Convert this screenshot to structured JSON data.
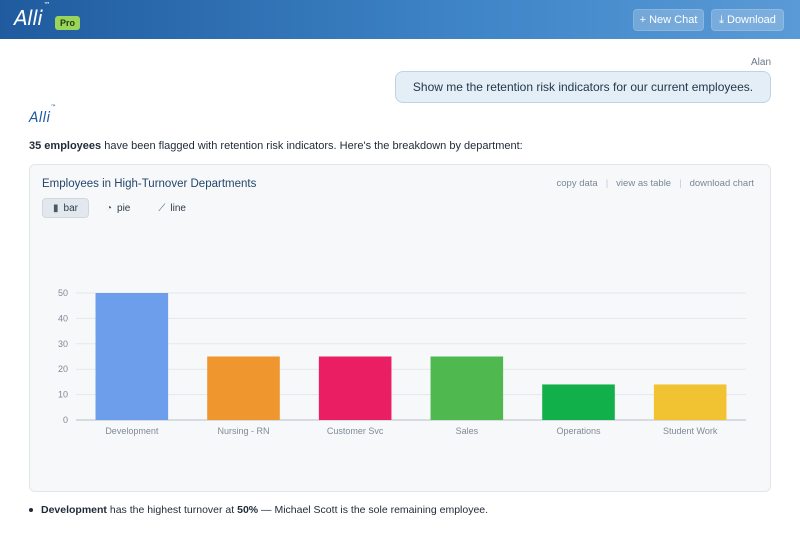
{
  "header": {
    "logo_text": "Alli",
    "logo_tm": "™",
    "badge": "Pro",
    "new_chat": "+ New Chat",
    "download": "⤓ Download"
  },
  "conversation": {
    "user_name": "Alan",
    "user_message": "Show me the retention risk indicators for our current employees.",
    "assistant_name": "Alli",
    "assistant_tm": "™",
    "summary_count": "35 employees",
    "summary_rest": " have been flagged with retention risk indicators. Here's the breakdown by department:"
  },
  "chart_card": {
    "title": "Employees in High-Turnover Departments",
    "actions": [
      "copy data",
      "view as table",
      "download chart"
    ],
    "tabs": [
      {
        "label": "bar",
        "icon": "bar-chart-icon",
        "glyph": "▮"
      },
      {
        "label": "pie",
        "icon": "pie-chart-icon",
        "glyph": "◔"
      },
      {
        "label": "line",
        "icon": "line-chart-icon",
        "glyph": "⟋"
      }
    ],
    "active_tab": "bar"
  },
  "chart_data": {
    "type": "bar",
    "title": "Employees in High-Turnover Departments",
    "categories": [
      "Development",
      "Nursing - RN",
      "Customer Svc",
      "Sales",
      "Operations",
      "Student Work"
    ],
    "values": [
      50,
      25,
      25,
      25,
      14,
      14
    ],
    "colors": [
      "#6d9eeb",
      "#f0962e",
      "#e91e63",
      "#4fb84f",
      "#12b04a",
      "#f1c232"
    ],
    "yticks": [
      0,
      10,
      20,
      30,
      40,
      50
    ],
    "ylim": [
      0,
      50
    ],
    "grid": true,
    "xlabel": "",
    "ylabel": ""
  },
  "insight": {
    "dept": "Development",
    "text1": " has the highest turnover at ",
    "pct": "50%",
    "text2": " — Michael Scott is the sole remaining employee."
  }
}
